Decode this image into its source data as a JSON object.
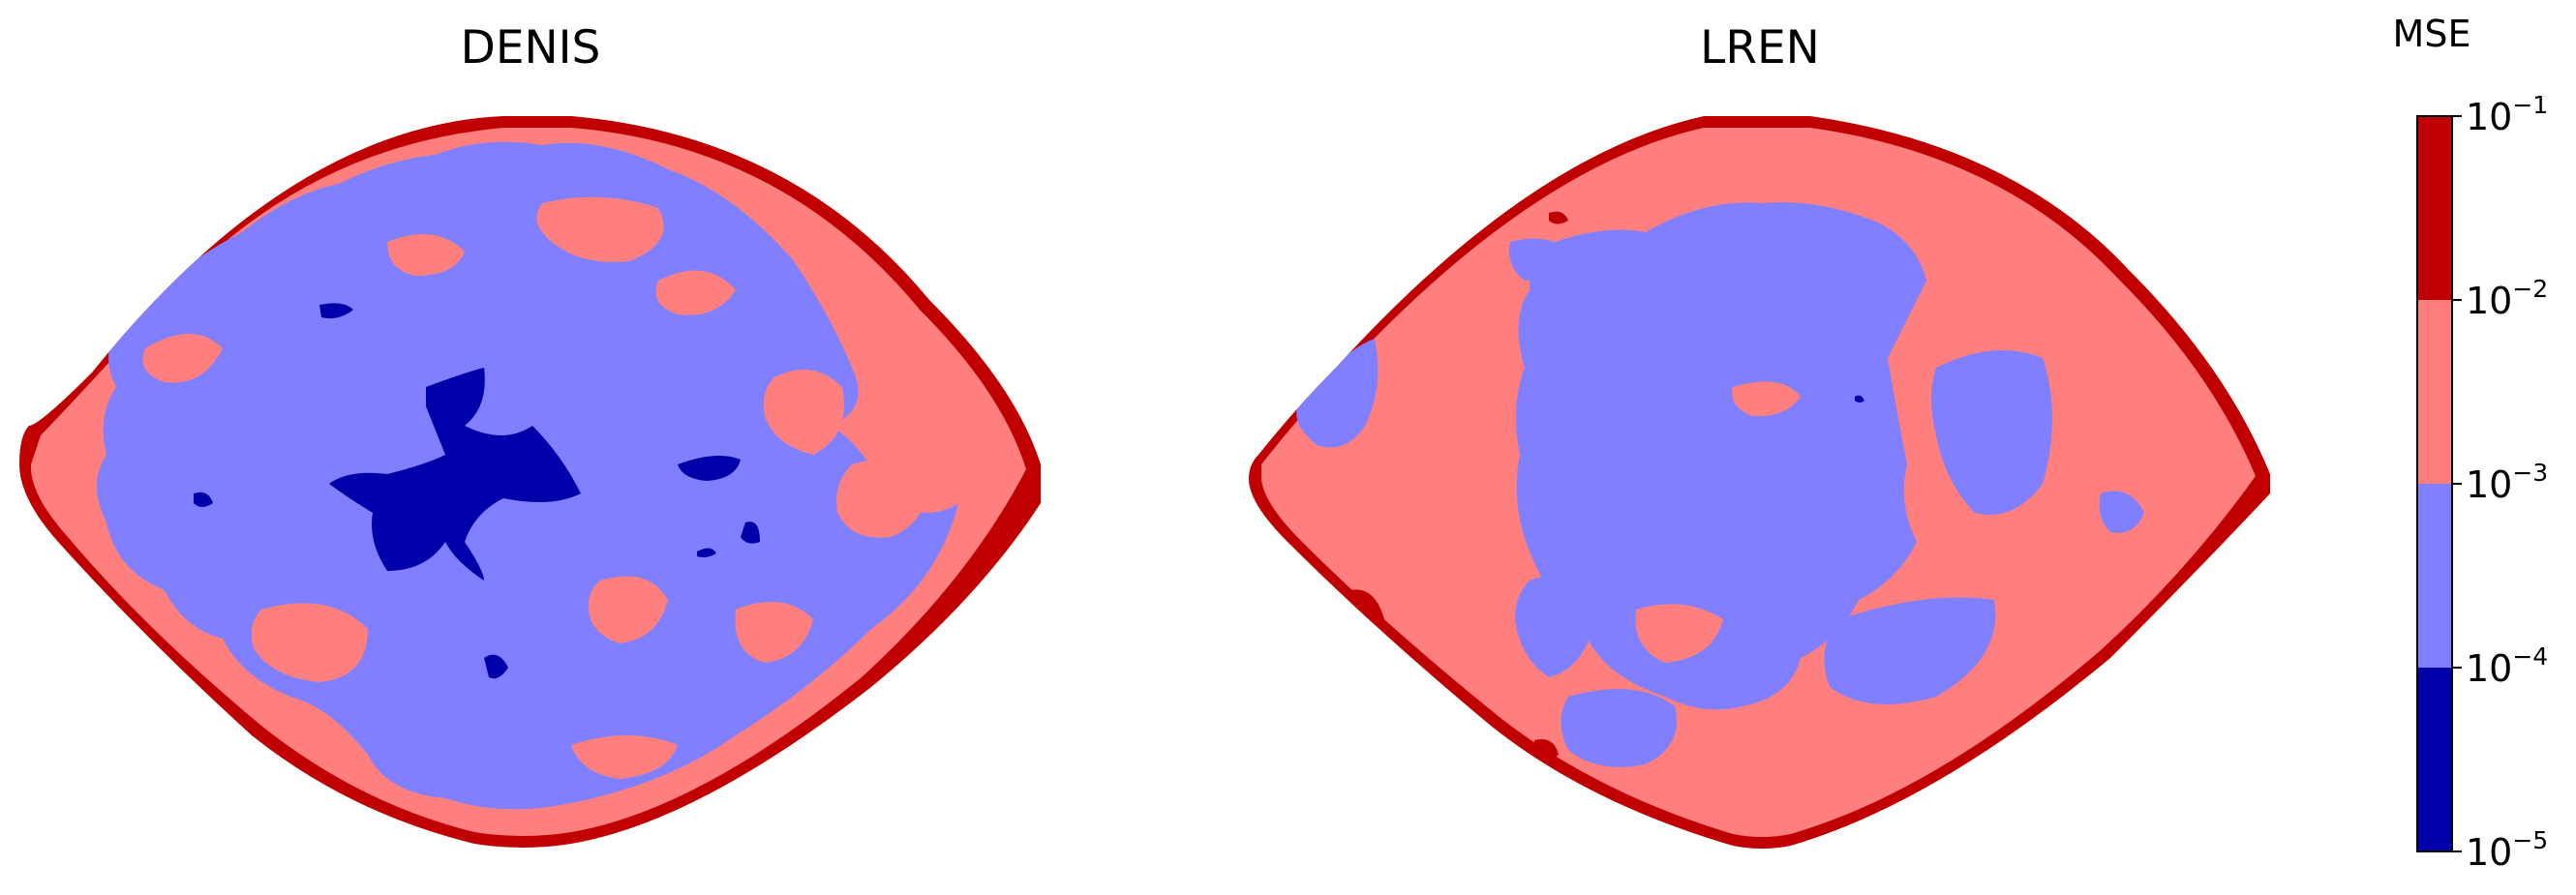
{
  "chart_data": {
    "type": "heatmap",
    "panels": [
      {
        "title": "DENIS",
        "regions": [
          {
            "class": "1e-2..1e-1",
            "color": "#c00000"
          },
          {
            "class": "1e-3..1e-2",
            "color": "#ff7f7f"
          },
          {
            "class": "1e-4..1e-3",
            "color": "#7f7fff"
          },
          {
            "class": "1e-5..1e-4",
            "color": "#0000aa"
          }
        ]
      },
      {
        "title": "LREN",
        "regions": [
          {
            "class": "1e-2..1e-1",
            "color": "#c00000"
          },
          {
            "class": "1e-3..1e-2",
            "color": "#ff7f7f"
          },
          {
            "class": "1e-4..1e-3",
            "color": "#7f7fff"
          },
          {
            "class": "1e-5..1e-4",
            "color": "#0000aa"
          }
        ]
      }
    ],
    "colorbar": {
      "label": "MSE",
      "scale": "log",
      "range": [
        1e-05,
        0.1
      ],
      "ticks": [
        {
          "value": 0.1,
          "base": "10",
          "exp": "−1"
        },
        {
          "value": 0.01,
          "base": "10",
          "exp": "−2"
        },
        {
          "value": 0.001,
          "base": "10",
          "exp": "−3"
        },
        {
          "value": 0.0001,
          "base": "10",
          "exp": "−4"
        },
        {
          "value": 1e-05,
          "base": "10",
          "exp": "−5"
        }
      ],
      "bands": [
        {
          "from": 0.01,
          "to": 0.1,
          "color": "#c00000"
        },
        {
          "from": 0.001,
          "to": 0.01,
          "color": "#ff7f7f"
        },
        {
          "from": 0.0001,
          "to": 0.001,
          "color": "#7f7fff"
        },
        {
          "from": 1e-05,
          "to": 0.0001,
          "color": "#0000aa"
        }
      ]
    },
    "legend": "right",
    "grid": false
  }
}
